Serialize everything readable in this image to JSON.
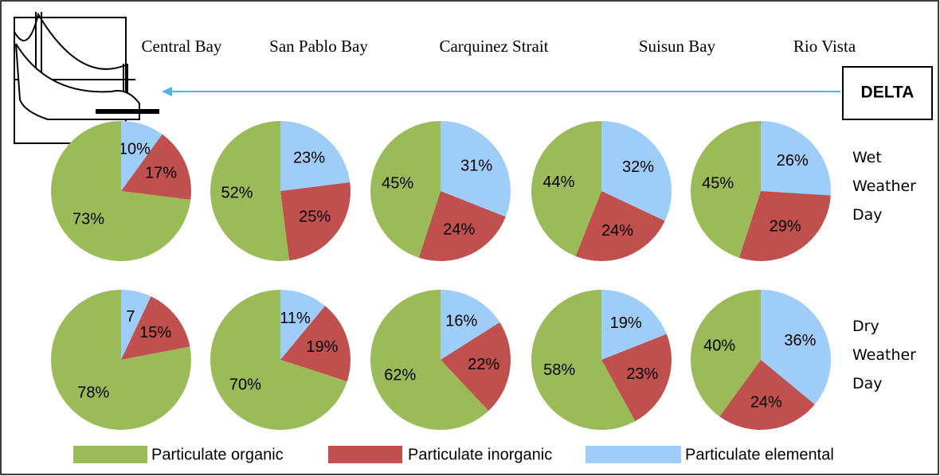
{
  "columns": [
    "Central Bay",
    "San Pablo Bay",
    "Carquinez Strait",
    "Suisun Bay",
    "Rio Vista"
  ],
  "rows": [
    "Wet Weather Day",
    "Dry Weather Day"
  ],
  "delta_label": "DELTA",
  "chart_data": [
    {
      "type": "pie",
      "categories": [
        "Particulate organic",
        "Particulate inorganic",
        "Particulate elemental"
      ],
      "colors": [
        "#9bbb59",
        "#c0504d",
        "#9fcdf9"
      ],
      "values": [
        73,
        17,
        10
      ],
      "value_labels": [
        "73%",
        "17%",
        "10%"
      ]
    },
    {
      "type": "pie",
      "categories": [
        "Particulate organic",
        "Particulate inorganic",
        "Particulate elemental"
      ],
      "colors": [
        "#9bbb59",
        "#c0504d",
        "#9fcdf9"
      ],
      "values": [
        52,
        25,
        23
      ],
      "value_labels": [
        "52%",
        "25%",
        "23%"
      ]
    },
    {
      "type": "pie",
      "categories": [
        "Particulate organic",
        "Particulate inorganic",
        "Particulate elemental"
      ],
      "colors": [
        "#9bbb59",
        "#c0504d",
        "#9fcdf9"
      ],
      "values": [
        45,
        24,
        31
      ],
      "value_labels": [
        "45%",
        "24%",
        "31%"
      ]
    },
    {
      "type": "pie",
      "categories": [
        "Particulate organic",
        "Particulate inorganic",
        "Particulate elemental"
      ],
      "colors": [
        "#9bbb59",
        "#c0504d",
        "#9fcdf9"
      ],
      "values": [
        44,
        24,
        32
      ],
      "value_labels": [
        "44%",
        "24%",
        "32%"
      ]
    },
    {
      "type": "pie",
      "categories": [
        "Particulate organic",
        "Particulate inorganic",
        "Particulate elemental"
      ],
      "colors": [
        "#9bbb59",
        "#c0504d",
        "#9fcdf9"
      ],
      "values": [
        45,
        29,
        26
      ],
      "value_labels": [
        "45%",
        "29%",
        "26%"
      ]
    },
    {
      "type": "pie",
      "categories": [
        "Particulate organic",
        "Particulate inorganic",
        "Particulate elemental"
      ],
      "colors": [
        "#9bbb59",
        "#c0504d",
        "#9fcdf9"
      ],
      "values": [
        78,
        15,
        7
      ],
      "value_labels": [
        "78%",
        "15%",
        "7"
      ]
    },
    {
      "type": "pie",
      "categories": [
        "Particulate organic",
        "Particulate inorganic",
        "Particulate elemental"
      ],
      "colors": [
        "#9bbb59",
        "#c0504d",
        "#9fcdf9"
      ],
      "values": [
        70,
        19,
        11
      ],
      "value_labels": [
        "70%",
        "19%",
        "11%"
      ]
    },
    {
      "type": "pie",
      "categories": [
        "Particulate organic",
        "Particulate inorganic",
        "Particulate elemental"
      ],
      "colors": [
        "#9bbb59",
        "#c0504d",
        "#9fcdf9"
      ],
      "values": [
        62,
        22,
        16
      ],
      "value_labels": [
        "62%",
        "22%",
        "16%"
      ]
    },
    {
      "type": "pie",
      "categories": [
        "Particulate organic",
        "Particulate inorganic",
        "Particulate elemental"
      ],
      "colors": [
        "#9bbb59",
        "#c0504d",
        "#9fcdf9"
      ],
      "values": [
        58,
        23,
        19
      ],
      "value_labels": [
        "58%",
        "23%",
        "19%"
      ]
    },
    {
      "type": "pie",
      "categories": [
        "Particulate organic",
        "Particulate inorganic",
        "Particulate elemental"
      ],
      "colors": [
        "#9bbb59",
        "#c0504d",
        "#9fcdf9"
      ],
      "values": [
        40,
        24,
        36
      ],
      "value_labels": [
        "40%",
        "24%",
        "36%"
      ]
    }
  ]
}
